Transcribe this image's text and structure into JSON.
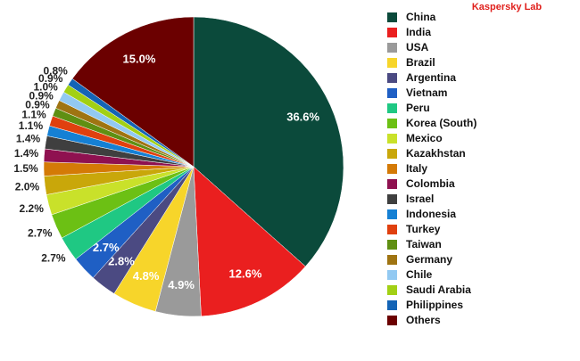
{
  "chart_data": {
    "type": "pie",
    "annotation": "Kaspersky Lab",
    "categories": [
      "China",
      "India",
      "USA",
      "Brazil",
      "Argentina",
      "Vietnam",
      "Peru",
      "Korea (South)",
      "Mexico",
      "Kazakhstan",
      "Italy",
      "Colombia",
      "Israel",
      "Indonesia",
      "Turkey",
      "Taiwan",
      "Germany",
      "Chile",
      "Saudi Arabia",
      "Philippines",
      "Others"
    ],
    "values": [
      36.6,
      12.6,
      4.9,
      4.8,
      2.8,
      2.7,
      2.7,
      2.7,
      2.2,
      2.0,
      1.5,
      1.4,
      1.4,
      1.1,
      1.1,
      0.9,
      0.9,
      1.0,
      0.9,
      0.8,
      15.0
    ],
    "value_labels": [
      "36.6%",
      "12.6%",
      "4.9%",
      "4.8%",
      "2.8%",
      "2.7%",
      "2.7%",
      "2.7%",
      "2.2%",
      "2.0%",
      "1.5%",
      "1.4%",
      "1.4%",
      "1.1%",
      "1.1%",
      "0.9%",
      "0.9%",
      "1.0%",
      "0.9%",
      "0.8%",
      "15.0%"
    ],
    "colors": [
      "#0b4a3b",
      "#ea1f1f",
      "#9a9a9a",
      "#f7d52a",
      "#4b4a82",
      "#1f5fc4",
      "#1fc883",
      "#6cc014",
      "#c9e12a",
      "#c9a70a",
      "#d47a06",
      "#8f1150",
      "#3f3f3f",
      "#1580d4",
      "#e0400f",
      "#5f8f12",
      "#9f7412",
      "#92c9f2",
      "#a2d015",
      "#1464b6",
      "#6b0000"
    ]
  }
}
